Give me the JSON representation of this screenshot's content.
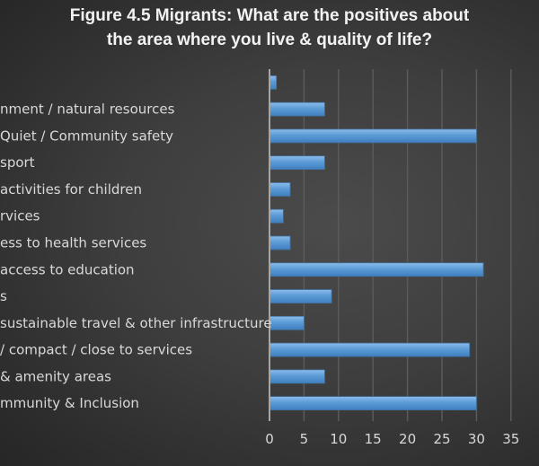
{
  "chart_data": {
    "type": "bar",
    "orientation": "horizontal",
    "title": "Figure 4.5 Migrants: What are the positives about the area where you live & quality of life?",
    "title_lines": [
      "Figure 4.5 Migrants: What are the positives about",
      "the area where you live & quality of life?"
    ],
    "categories": [
      "",
      "nment / natural resources",
      "Quiet / Community safety",
      "sport",
      "activities for children",
      "rvices",
      "ess to health services",
      "access to education",
      "s",
      "sustainable travel & other infrastructure",
      " / compact / close to services",
      " & amenity areas",
      "mmunity & Inclusion"
    ],
    "values": [
      1,
      8,
      30,
      8,
      3,
      2,
      3,
      31,
      9,
      5,
      29,
      8,
      30
    ],
    "xlim": [
      0,
      35
    ],
    "xticks": [
      0,
      5,
      10,
      15,
      20,
      25,
      30,
      35
    ],
    "xlabel": "",
    "ylabel": "",
    "grid": "vertical",
    "legend": "none",
    "colors": {
      "bar": "#5b9bd5",
      "bar_light": "#8cbcec",
      "bar_dark": "#3f7fc0",
      "bar_border": "#41719c",
      "grid": "#5a5a5a",
      "axis": "#a6a6a6",
      "text": "#d9d9d9"
    }
  }
}
